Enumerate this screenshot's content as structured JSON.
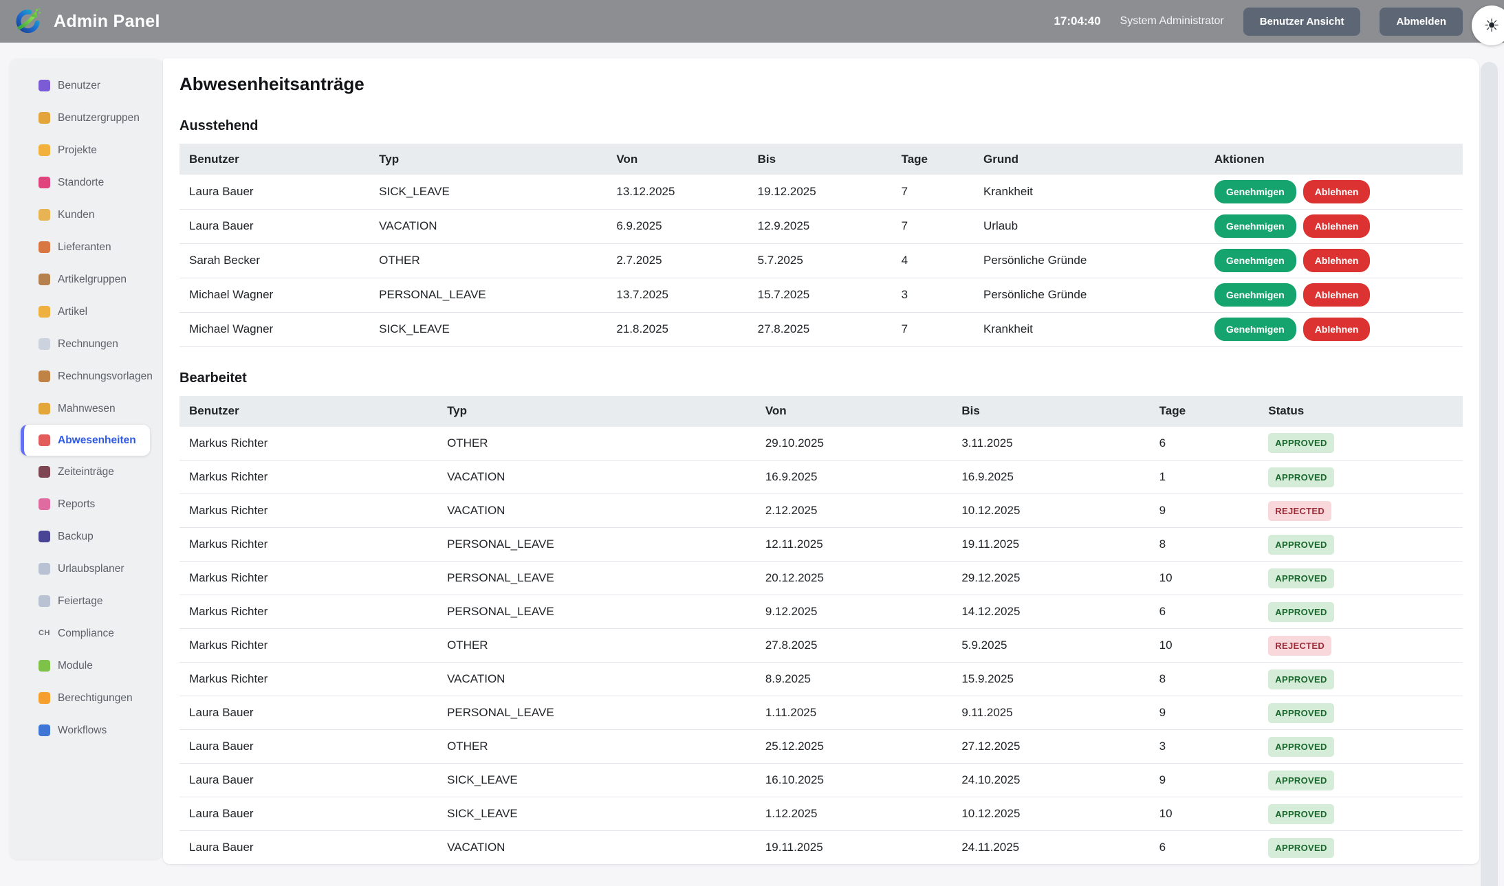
{
  "header": {
    "app_title": "Admin Panel",
    "time": "17:04:40",
    "user_role": "System Administrator",
    "buttons": {
      "user_view": "Benutzer Ansicht",
      "logout": "Abmelden"
    },
    "theme_toggle_glyph": "☀"
  },
  "sidebar": {
    "items": [
      {
        "label": "Benutzer",
        "icon": "users-icon",
        "color": "#7b5bd6",
        "active": false
      },
      {
        "label": "Benutzergruppen",
        "icon": "family-icon",
        "color": "#e3a43c",
        "active": false
      },
      {
        "label": "Projekte",
        "icon": "folder-icon",
        "color": "#f2b13c",
        "active": false
      },
      {
        "label": "Standorte",
        "icon": "pushpin-icon",
        "color": "#e0447c",
        "active": false
      },
      {
        "label": "Kunden",
        "icon": "handshake-icon",
        "color": "#e8b353",
        "active": false
      },
      {
        "label": "Lieferanten",
        "icon": "truck-icon",
        "color": "#d97742",
        "active": false
      },
      {
        "label": "Artikelgruppen",
        "icon": "package-icon",
        "color": "#b5824f",
        "active": false
      },
      {
        "label": "Artikel",
        "icon": "label-tag-icon",
        "color": "#eeb03f",
        "active": false
      },
      {
        "label": "Rechnungen",
        "icon": "document-icon",
        "color": "#ccd3df",
        "active": false
      },
      {
        "label": "Rechnungsvorlagen",
        "icon": "clipboard-icon",
        "color": "#c08346",
        "active": false
      },
      {
        "label": "Mahnwesen",
        "icon": "money-bag-icon",
        "color": "#e2a63b",
        "active": false
      },
      {
        "label": "Abwesenheiten",
        "icon": "beach-umbrella-icon",
        "color": "#e25c5c",
        "active": true
      },
      {
        "label": "Zeiteinträge",
        "icon": "stopwatch-icon",
        "color": "#7e4553",
        "active": false
      },
      {
        "label": "Reports",
        "icon": "bar-chart-icon",
        "color": "#e06ba0",
        "active": false
      },
      {
        "label": "Backup",
        "icon": "floppy-disk-icon",
        "color": "#4a4494",
        "active": false
      },
      {
        "label": "Urlaubsplaner",
        "icon": "calendar-icon",
        "color": "#b9c2d2",
        "active": false
      },
      {
        "label": "Feiertage",
        "icon": "calendar-icon",
        "color": "#b9c2d2",
        "active": false
      },
      {
        "label": "Compliance",
        "icon": "ch-flag-icon",
        "color": "",
        "text_glyph": "CH",
        "active": false
      },
      {
        "label": "Module",
        "icon": "puzzle-icon",
        "color": "#7fc24a",
        "active": false
      },
      {
        "label": "Berechtigungen",
        "icon": "lock-icon",
        "color": "#f59f2e",
        "active": false
      },
      {
        "label": "Workflows",
        "icon": "sync-arrows-icon",
        "color": "#3f76d6",
        "active": false
      }
    ]
  },
  "main": {
    "title": "Abwesenheitsanträge",
    "pending": {
      "heading": "Ausstehend",
      "columns": [
        "Benutzer",
        "Typ",
        "Von",
        "Bis",
        "Tage",
        "Grund",
        "Aktionen"
      ],
      "col_widths": [
        "14.8%",
        "18.5%",
        "11.0%",
        "11.2%",
        "6.4%",
        "18.0%",
        "20.1%"
      ],
      "actions": {
        "approve": "Genehmigen",
        "reject": "Ablehnen"
      },
      "rows": [
        {
          "benutzer": "Laura Bauer",
          "typ": "SICK_LEAVE",
          "von": "13.12.2025",
          "bis": "19.12.2025",
          "tage": "7",
          "grund": "Krankheit"
        },
        {
          "benutzer": "Laura Bauer",
          "typ": "VACATION",
          "von": "6.9.2025",
          "bis": "12.9.2025",
          "tage": "7",
          "grund": "Urlaub"
        },
        {
          "benutzer": "Sarah Becker",
          "typ": "OTHER",
          "von": "2.7.2025",
          "bis": "5.7.2025",
          "tage": "4",
          "grund": "Persönliche Gründe"
        },
        {
          "benutzer": "Michael Wagner",
          "typ": "PERSONAL_LEAVE",
          "von": "13.7.2025",
          "bis": "15.7.2025",
          "tage": "3",
          "grund": "Persönliche Gründe"
        },
        {
          "benutzer": "Michael Wagner",
          "typ": "SICK_LEAVE",
          "von": "21.8.2025",
          "bis": "27.8.2025",
          "tage": "7",
          "grund": "Krankheit"
        }
      ]
    },
    "processed": {
      "heading": "Bearbeitet",
      "columns": [
        "Benutzer",
        "Typ",
        "Von",
        "Bis",
        "Tage",
        "Status"
      ],
      "col_widths": [
        "20.1%",
        "24.8%",
        "15.3%",
        "15.4%",
        "8.5%",
        "15.9%"
      ],
      "rows": [
        {
          "benutzer": "Markus Richter",
          "typ": "OTHER",
          "von": "29.10.2025",
          "bis": "3.11.2025",
          "tage": "6",
          "status": "APPROVED"
        },
        {
          "benutzer": "Markus Richter",
          "typ": "VACATION",
          "von": "16.9.2025",
          "bis": "16.9.2025",
          "tage": "1",
          "status": "APPROVED"
        },
        {
          "benutzer": "Markus Richter",
          "typ": "VACATION",
          "von": "2.12.2025",
          "bis": "10.12.2025",
          "tage": "9",
          "status": "REJECTED"
        },
        {
          "benutzer": "Markus Richter",
          "typ": "PERSONAL_LEAVE",
          "von": "12.11.2025",
          "bis": "19.11.2025",
          "tage": "8",
          "status": "APPROVED"
        },
        {
          "benutzer": "Markus Richter",
          "typ": "PERSONAL_LEAVE",
          "von": "20.12.2025",
          "bis": "29.12.2025",
          "tage": "10",
          "status": "APPROVED"
        },
        {
          "benutzer": "Markus Richter",
          "typ": "PERSONAL_LEAVE",
          "von": "9.12.2025",
          "bis": "14.12.2025",
          "tage": "6",
          "status": "APPROVED"
        },
        {
          "benutzer": "Markus Richter",
          "typ": "OTHER",
          "von": "27.8.2025",
          "bis": "5.9.2025",
          "tage": "10",
          "status": "REJECTED"
        },
        {
          "benutzer": "Markus Richter",
          "typ": "VACATION",
          "von": "8.9.2025",
          "bis": "15.9.2025",
          "tage": "8",
          "status": "APPROVED"
        },
        {
          "benutzer": "Laura Bauer",
          "typ": "PERSONAL_LEAVE",
          "von": "1.11.2025",
          "bis": "9.11.2025",
          "tage": "9",
          "status": "APPROVED"
        },
        {
          "benutzer": "Laura Bauer",
          "typ": "OTHER",
          "von": "25.12.2025",
          "bis": "27.12.2025",
          "tage": "3",
          "status": "APPROVED"
        },
        {
          "benutzer": "Laura Bauer",
          "typ": "SICK_LEAVE",
          "von": "16.10.2025",
          "bis": "24.10.2025",
          "tage": "9",
          "status": "APPROVED"
        },
        {
          "benutzer": "Laura Bauer",
          "typ": "SICK_LEAVE",
          "von": "1.12.2025",
          "bis": "10.12.2025",
          "tage": "10",
          "status": "APPROVED"
        },
        {
          "benutzer": "Laura Bauer",
          "typ": "VACATION",
          "von": "19.11.2025",
          "bis": "24.11.2025",
          "tage": "6",
          "status": "APPROVED"
        }
      ]
    }
  },
  "colors": {
    "header_bg": "#8c8e91",
    "header_button_bg": "#5c6674",
    "approve_green": "#16a46e",
    "reject_red": "#dc3232",
    "approved_badge_bg": "#d5ecd9",
    "approved_badge_text": "#19692c",
    "rejected_badge_bg": "#f8d8db",
    "rejected_badge_text": "#9b2c38",
    "active_nav_text": "#2d59e5",
    "active_nav_bar": "#6571f3"
  }
}
